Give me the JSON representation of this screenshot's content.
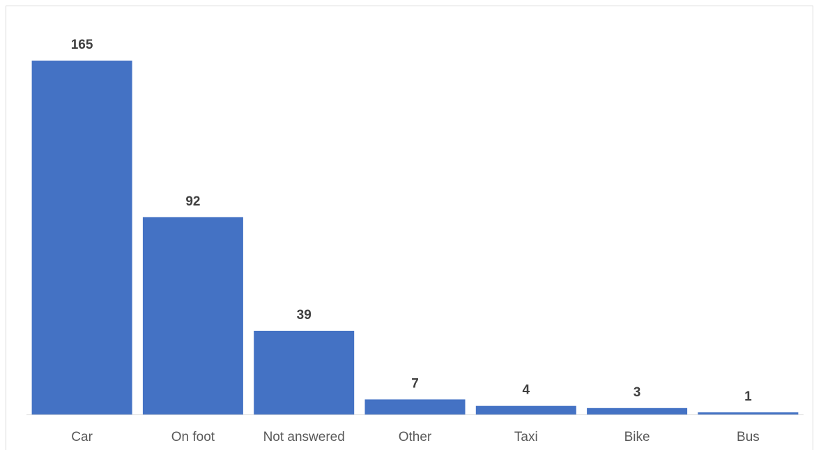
{
  "chart_data": {
    "type": "bar",
    "title": "",
    "xlabel": "",
    "ylabel": "",
    "categories": [
      "Car",
      "On foot",
      "Not answered",
      "Other",
      "Taxi",
      "Bike",
      "Bus"
    ],
    "values": [
      165,
      92,
      39,
      7,
      4,
      3,
      1
    ],
    "data_labels": [
      "165",
      "92",
      "39",
      "7",
      "4",
      "3",
      "1"
    ],
    "ylim": [
      0,
      165
    ],
    "grid": false,
    "legend": "none",
    "bar_color": "#4472c4",
    "axis_color": "#d9d9d9",
    "label_color": "#3f3f3f",
    "tick_color": "#595959"
  }
}
